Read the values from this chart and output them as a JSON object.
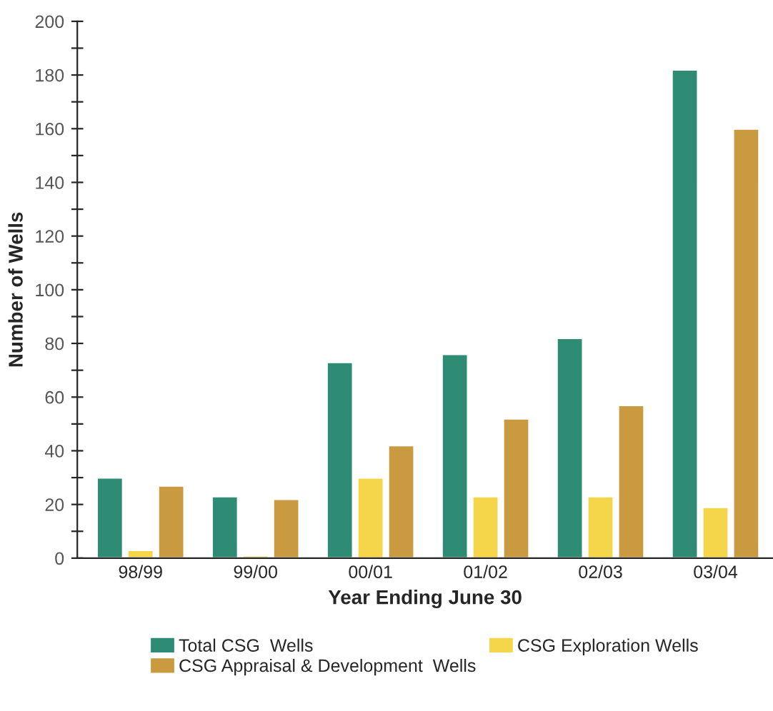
{
  "chart_data": {
    "type": "bar",
    "xlabel": "Year Ending June 30",
    "ylabel": "Number of Wells",
    "categories": [
      "98/99",
      "99/00",
      "00/01",
      "01/02",
      "02/03",
      "03/04"
    ],
    "series": [
      {
        "name": "Total CSG  Wells",
        "color": "#2e8b74",
        "values": [
          30,
          23,
          73,
          76,
          82,
          182
        ]
      },
      {
        "name": "CSG Exploration Wells",
        "color": "#f5d54a",
        "values": [
          3,
          1,
          30,
          23,
          23,
          19
        ]
      },
      {
        "name": "CSG Appraisal & Development  Wells",
        "color": "#c99a40",
        "values": [
          27,
          22,
          42,
          52,
          57,
          160
        ]
      }
    ],
    "ylim": [
      0,
      200
    ],
    "yticks": [
      0,
      {
        "value": 10,
        "label": null
      },
      20,
      {
        "value": 30,
        "label": null
      },
      40,
      {
        "value": 50,
        "label": null
      },
      60,
      {
        "value": 70,
        "label": null
      },
      80,
      {
        "value": 90,
        "label": null
      },
      100,
      {
        "value": 110,
        "label": null
      },
      120,
      {
        "value": 130,
        "label": null
      },
      140,
      {
        "value": 150,
        "label": null
      },
      160,
      {
        "value": 170,
        "label": null
      },
      180,
      {
        "value": 190,
        "label": null
      },
      200
    ],
    "grid": false,
    "legend": "bottom"
  }
}
